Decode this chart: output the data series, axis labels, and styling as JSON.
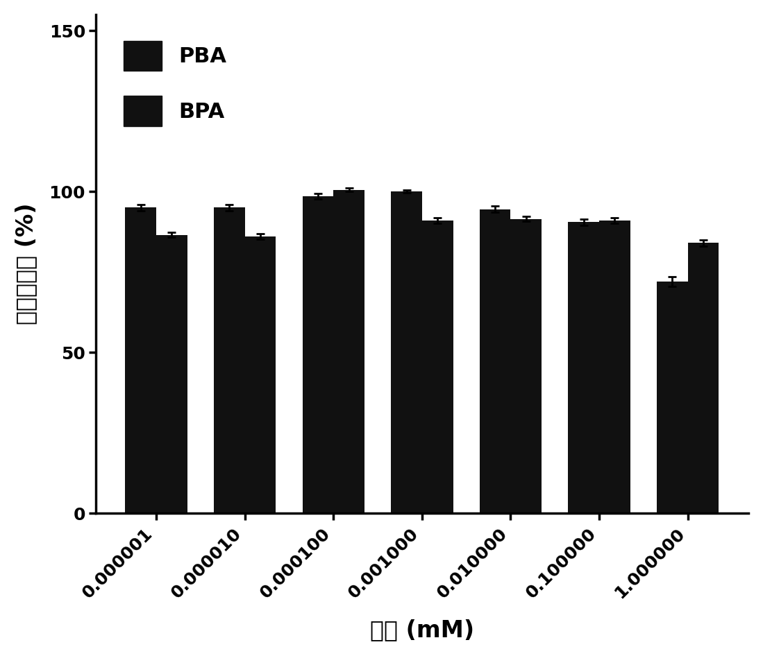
{
  "categories": [
    "0.000001",
    "0.000010",
    "0.000100",
    "0.001000",
    "0.010000",
    "0.100000",
    "1.000000"
  ],
  "PBA_values": [
    95.0,
    95.0,
    98.5,
    100.0,
    94.5,
    90.5,
    72.0
  ],
  "BPA_values": [
    86.5,
    86.0,
    100.5,
    91.0,
    91.5,
    91.0,
    84.0
  ],
  "PBA_errors": [
    1.0,
    1.0,
    0.8,
    0.5,
    1.0,
    1.0,
    1.5
  ],
  "BPA_errors": [
    0.8,
    0.8,
    0.5,
    0.8,
    0.8,
    0.8,
    1.0
  ],
  "bar_color": "#111111",
  "ylabel": "细胞存活率 (%)",
  "xlabel": "浓度 (mM)",
  "ylim": [
    0,
    155
  ],
  "yticks": [
    0,
    50,
    100,
    150
  ],
  "legend_labels": [
    "PBA",
    "BPA"
  ],
  "bar_width": 0.35,
  "background_color": "#ffffff",
  "axis_linewidth": 2.5,
  "tick_fontsize": 18,
  "label_fontsize": 24,
  "legend_fontsize": 22
}
